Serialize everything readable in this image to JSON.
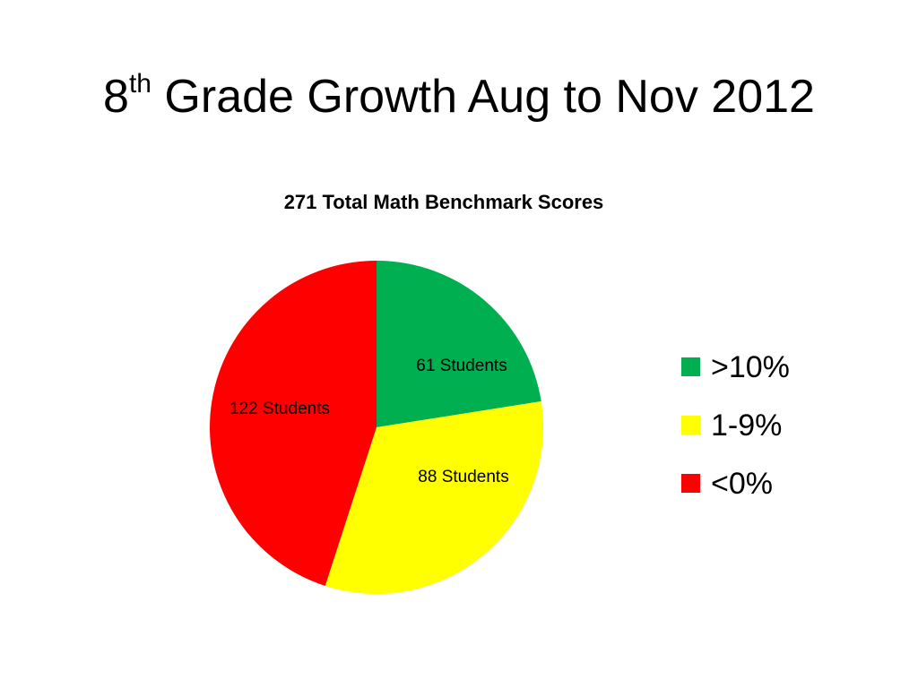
{
  "slide": {
    "title_prefix": "8",
    "title_sup": "th",
    "title_rest": " Grade Growth Aug to Nov 2012"
  },
  "chart_data": {
    "type": "pie",
    "title": "271 Total Math Benchmark Scores",
    "slices": [
      {
        "legend": ">10%",
        "value": 61,
        "label": "61 Students",
        "color": "#00b050"
      },
      {
        "legend": "1-9%",
        "value": 88,
        "label": "88 Students",
        "color": "#ffff00"
      },
      {
        "legend": "<0%",
        "value": 122,
        "label": "122 Students",
        "color": "#ff0000"
      }
    ],
    "start": "12 o'clock",
    "direction": "clockwise",
    "legend_position": "right"
  }
}
